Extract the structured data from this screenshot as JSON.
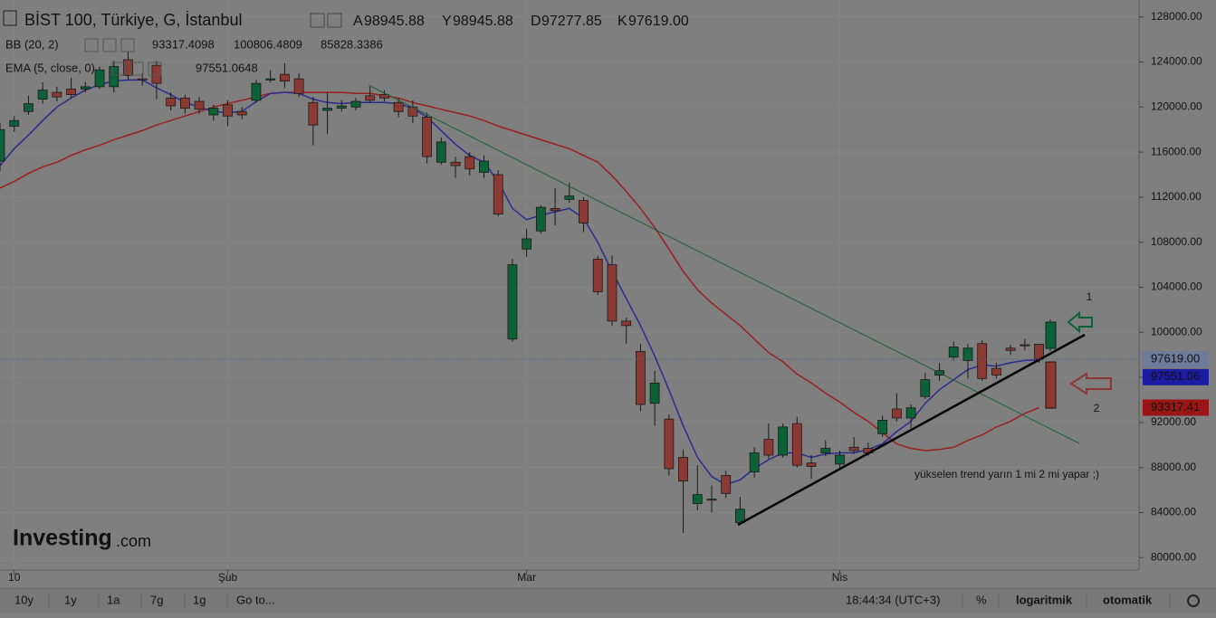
{
  "chart_data": {
    "type": "candlestick",
    "title": "BİST 100, Türkiye, G, İstanbul",
    "ohlc_legend": [
      {
        "key": "A",
        "value": "98945.88"
      },
      {
        "key": "Y",
        "value": "98945.88"
      },
      {
        "key": "D",
        "value": "97277.85"
      },
      {
        "key": "K",
        "value": "97619.00"
      }
    ],
    "indicators": [
      {
        "label": "BB (20, 2)",
        "readouts": [
          {
            "text": "93317.4098",
            "color": "#7a1414"
          },
          {
            "text": "100806.4809",
            "color": "#1c1c6e"
          },
          {
            "text": "85828.3386",
            "color": "#1c1c6e"
          }
        ],
        "color": "#9a1f1f",
        "values": [
          112800,
          113400,
          114100,
          114700,
          115100,
          115700,
          116200,
          116600,
          117100,
          117500,
          117900,
          118400,
          118800,
          119200,
          119600,
          120000,
          120300,
          120600,
          120900,
          121200,
          121300,
          121300,
          121300,
          121300,
          121300,
          121200,
          121200,
          121000,
          120800,
          120400,
          120100,
          119800,
          119500,
          119200,
          118800,
          118300,
          117900,
          117500,
          117100,
          116700,
          116300,
          115700,
          115100,
          113900,
          112500,
          111000,
          109300,
          107400,
          105400,
          103800,
          102600,
          101600,
          100600,
          99400,
          98200,
          97400,
          96300,
          95500,
          94600,
          93800,
          92900,
          92100,
          91100,
          90100,
          89700,
          89500,
          89600,
          89800,
          90400,
          90900,
          91600,
          92100,
          92800,
          93317.4098
        ]
      },
      {
        "label": "EMA (5, close, 0)",
        "readouts": [
          {
            "text": "97551.0648",
            "color": "#1c1c6e"
          }
        ],
        "color": "#2b2b8f",
        "values": [
          114800,
          116300,
          117500,
          118800,
          120000,
          120800,
          121500,
          122000,
          122300,
          122400,
          122400,
          121700,
          121100,
          120400,
          120000,
          119600,
          119500,
          119600,
          120500,
          121200,
          121300,
          121200,
          120700,
          120400,
          120300,
          120400,
          120400,
          120400,
          120300,
          119900,
          119100,
          117900,
          116700,
          115700,
          115100,
          113400,
          111000,
          110000,
          110400,
          110700,
          111000,
          110100,
          108000,
          105400,
          103000,
          100600,
          97900,
          94900,
          91700,
          88900,
          87200,
          86500,
          86900,
          87900,
          88700,
          89300,
          89300,
          88900,
          89200,
          89300,
          89300,
          89600,
          90100,
          91200,
          92100,
          93700,
          94900,
          95800,
          96700,
          97100,
          97000,
          97300,
          97500,
          97551.0648
        ]
      }
    ],
    "categories": [
      null,
      "10",
      null,
      null,
      null,
      null,
      null,
      null,
      null,
      null,
      null,
      null,
      null,
      null,
      null,
      null,
      "Şub",
      null,
      null,
      null,
      null,
      null,
      null,
      null,
      null,
      null,
      null,
      null,
      null,
      null,
      null,
      null,
      null,
      null,
      null,
      null,
      null,
      "Mar",
      null,
      null,
      null,
      null,
      null,
      null,
      null,
      null,
      null,
      null,
      null,
      null,
      null,
      null,
      null,
      null,
      null,
      null,
      null,
      null,
      null,
      "Nis",
      null,
      null,
      null,
      null,
      null,
      null,
      null,
      null,
      null,
      null,
      null,
      null,
      null,
      null
    ],
    "open": [
      115200,
      118300,
      119600,
      120700,
      121300,
      121600,
      121600,
      121800,
      121800,
      124200,
      122500,
      123700,
      120800,
      120800,
      120500,
      119300,
      120200,
      119600,
      120600,
      122400,
      122900,
      122500,
      120400,
      119700,
      119900,
      120000,
      121000,
      121100,
      120400,
      120000,
      119100,
      115100,
      115100,
      115600,
      114200,
      114000,
      99400,
      107400,
      109000,
      111000,
      111800,
      111700,
      106500,
      106000,
      101000,
      98300,
      93700,
      92300,
      88900,
      84800,
      85200,
      87300,
      83100,
      87600,
      90500,
      89100,
      91900,
      88400,
      89300,
      88300,
      89800,
      89700,
      91000,
      93200,
      92400,
      94300,
      96200,
      97800,
      97500,
      99000,
      96800,
      98600,
      98900,
      98945.88
    ],
    "high": [
      118600,
      119200,
      121000,
      122200,
      121800,
      122600,
      122200,
      123600,
      124100,
      124900,
      123000,
      124100,
      121300,
      121100,
      120900,
      120200,
      120600,
      120000,
      122400,
      123300,
      123900,
      123000,
      120900,
      121300,
      120600,
      120800,
      121800,
      121500,
      120800,
      120600,
      119500,
      117300,
      115600,
      116000,
      115700,
      114400,
      106500,
      109200,
      111300,
      112800,
      113300,
      112000,
      106800,
      106800,
      101300,
      99000,
      96600,
      92700,
      89600,
      88200,
      86400,
      87700,
      85400,
      89800,
      91900,
      91900,
      92500,
      89100,
      90400,
      89500,
      90700,
      90200,
      92600,
      94600,
      93600,
      96400,
      97300,
      99200,
      99000,
      99300,
      97300,
      98900,
      99400,
      98945.88
    ],
    "low": [
      114300,
      117800,
      119300,
      120300,
      120500,
      120800,
      121300,
      121600,
      121300,
      122400,
      121900,
      120700,
      119700,
      119400,
      119400,
      118800,
      118300,
      118900,
      120400,
      122200,
      121700,
      120900,
      116600,
      117600,
      119600,
      119700,
      120400,
      120500,
      119100,
      118600,
      115000,
      114900,
      113700,
      113900,
      113700,
      110300,
      99200,
      106700,
      108800,
      109500,
      111500,
      108900,
      103300,
      100600,
      99000,
      93000,
      91700,
      87300,
      82200,
      84200,
      84000,
      85300,
      82900,
      87100,
      88800,
      88900,
      88000,
      87000,
      89000,
      87900,
      89200,
      89000,
      90700,
      92100,
      91500,
      94100,
      95700,
      97500,
      95900,
      95700,
      95900,
      98000,
      98400,
      97277.85
    ],
    "close": [
      118000,
      118800,
      120300,
      121500,
      120900,
      121100,
      121800,
      123300,
      123600,
      122800,
      122400,
      122100,
      120100,
      119900,
      119800,
      119900,
      119200,
      119300,
      122100,
      122500,
      122300,
      121200,
      118400,
      119900,
      120100,
      120500,
      120600,
      120800,
      119600,
      119200,
      115600,
      116900,
      114800,
      114500,
      115200,
      110500,
      106000,
      108300,
      111100,
      110800,
      112100,
      109700,
      103600,
      101000,
      100600,
      93600,
      95500,
      87900,
      86800,
      85600,
      85100,
      85700,
      84300,
      89300,
      89100,
      91600,
      88200,
      88100,
      89700,
      89100,
      89500,
      89300,
      92200,
      92400,
      93300,
      95800,
      96600,
      98700,
      98600,
      95900,
      96200,
      98400,
      98800,
      97619
    ],
    "up_color": "#0c6136",
    "down_color": "#8a3a33",
    "ylim": [
      78900,
      129500
    ],
    "yticks": [
      {
        "value": 80000,
        "label": "80000.00"
      },
      {
        "value": 84000,
        "label": "84000.00"
      },
      {
        "value": 88000,
        "label": "88000.00"
      },
      {
        "value": 92000,
        "label": "92000.00"
      },
      {
        "value": 96000,
        "label": "96000.00"
      },
      {
        "value": 100000,
        "label": "100000.00"
      },
      {
        "value": 104000,
        "label": "104000.00"
      },
      {
        "value": 108000,
        "label": "108000.00"
      },
      {
        "value": 112000,
        "label": "112000.00"
      },
      {
        "value": 116000,
        "label": "116000.00"
      },
      {
        "value": 120000,
        "label": "120000.00"
      },
      {
        "value": 124000,
        "label": "124000.00"
      },
      {
        "value": 128000,
        "label": "128000.00"
      }
    ],
    "price_tags": [
      {
        "value": 97619,
        "label": "97619.00",
        "color": "#6d7a99",
        "text_color": "#11163a"
      },
      {
        "value": 97551.06,
        "label": "97551.06",
        "color": "#1c1ca0",
        "text_color": "#cfcfcf"
      },
      {
        "value": 93317.41,
        "label": "93317.41",
        "color": "#9a1616",
        "text_color": "#d8d8d8"
      }
    ],
    "grid": true,
    "annotations": {
      "note": "yükselen trend yarın 1 mi 2  mi yapar ;)",
      "option_1": "1",
      "option_2": "2"
    },
    "logo": {
      "brand": "Investing",
      "suffix": ".com"
    },
    "toolbar": {
      "ranges": [
        "10y",
        "1y",
        "1a",
        "7g",
        "1g"
      ],
      "goto": "Go to...",
      "time": "18:44:34 (UTC+3)",
      "percent": "%",
      "log": "logaritmik",
      "auto": "otomatik"
    }
  }
}
